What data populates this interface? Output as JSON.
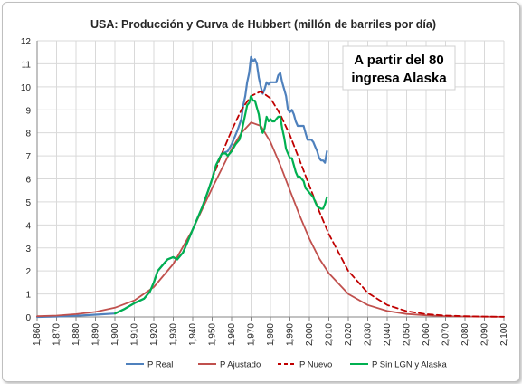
{
  "chart_data": {
    "type": "line",
    "title": "USA: Producción y Curva de Hubbert (millón de barriles por día)",
    "annotation": [
      "A partir del 80",
      "ingresa Alaska"
    ],
    "xlabel": "",
    "ylabel": "",
    "xlim": [
      1860,
      2100
    ],
    "ylim": [
      0,
      12
    ],
    "x_ticks": [
      "1,860",
      "1,870",
      "1,880",
      "1,890",
      "1,900",
      "1,910",
      "1,920",
      "1,930",
      "1,940",
      "1,950",
      "1,960",
      "1,970",
      "1,980",
      "1,990",
      "2,000",
      "2,010",
      "2,020",
      "2,030",
      "2,040",
      "2,050",
      "2,060",
      "2,070",
      "2,080",
      "2,090",
      "2,100"
    ],
    "y_ticks": [
      "0",
      "1",
      "2",
      "3",
      "4",
      "5",
      "6",
      "7",
      "8",
      "9",
      "10",
      "11",
      "12"
    ],
    "grid": true,
    "legend_position": "bottom",
    "series": [
      {
        "name": "P Real",
        "color": "#4f81bd",
        "dash": "",
        "points": [
          [
            1860,
            0.0
          ],
          [
            1870,
            0.02
          ],
          [
            1880,
            0.05
          ],
          [
            1890,
            0.1
          ],
          [
            1900,
            0.15
          ],
          [
            1905,
            0.35
          ],
          [
            1910,
            0.6
          ],
          [
            1915,
            0.8
          ],
          [
            1918,
            1.1
          ],
          [
            1920,
            1.5
          ],
          [
            1922,
            2.0
          ],
          [
            1925,
            2.3
          ],
          [
            1927,
            2.5
          ],
          [
            1930,
            2.6
          ],
          [
            1932,
            2.5
          ],
          [
            1935,
            2.8
          ],
          [
            1937,
            3.2
          ],
          [
            1940,
            3.8
          ],
          [
            1942,
            4.2
          ],
          [
            1945,
            4.8
          ],
          [
            1948,
            5.5
          ],
          [
            1950,
            6.0
          ],
          [
            1952,
            6.6
          ],
          [
            1955,
            7.1
          ],
          [
            1958,
            7.2
          ],
          [
            1960,
            7.5
          ],
          [
            1962,
            7.9
          ],
          [
            1963,
            8.1
          ],
          [
            1965,
            8.6
          ],
          [
            1966,
            9.2
          ],
          [
            1967,
            9.6
          ],
          [
            1968,
            10.2
          ],
          [
            1969,
            10.6
          ],
          [
            1970,
            11.3
          ],
          [
            1971,
            11.1
          ],
          [
            1972,
            11.2
          ],
          [
            1973,
            11.0
          ],
          [
            1974,
            10.4
          ],
          [
            1975,
            10.0
          ],
          [
            1976,
            9.7
          ],
          [
            1977,
            9.9
          ],
          [
            1978,
            10.2
          ],
          [
            1979,
            10.1
          ],
          [
            1980,
            10.2
          ],
          [
            1981,
            10.2
          ],
          [
            1982,
            10.2
          ],
          [
            1983,
            10.2
          ],
          [
            1984,
            10.5
          ],
          [
            1985,
            10.6
          ],
          [
            1986,
            10.2
          ],
          [
            1987,
            9.9
          ],
          [
            1988,
            9.6
          ],
          [
            1989,
            9.0
          ],
          [
            1990,
            8.9
          ],
          [
            1991,
            9.0
          ],
          [
            1992,
            8.8
          ],
          [
            1993,
            8.5
          ],
          [
            1994,
            8.3
          ],
          [
            1995,
            8.3
          ],
          [
            1996,
            8.3
          ],
          [
            1997,
            8.3
          ],
          [
            1998,
            8.0
          ],
          [
            1999,
            7.7
          ],
          [
            2000,
            7.7
          ],
          [
            2001,
            7.7
          ],
          [
            2002,
            7.6
          ],
          [
            2003,
            7.4
          ],
          [
            2004,
            7.2
          ],
          [
            2005,
            6.9
          ],
          [
            2006,
            6.8
          ],
          [
            2007,
            6.8
          ],
          [
            2008,
            6.7
          ],
          [
            2009,
            7.2
          ]
        ]
      },
      {
        "name": "P Ajustado",
        "color": "#c0504d",
        "dash": "",
        "points": [
          [
            1860,
            0.03
          ],
          [
            1870,
            0.06
          ],
          [
            1880,
            0.12
          ],
          [
            1890,
            0.22
          ],
          [
            1900,
            0.4
          ],
          [
            1910,
            0.72
          ],
          [
            1920,
            1.3
          ],
          [
            1930,
            2.3
          ],
          [
            1940,
            3.8
          ],
          [
            1950,
            5.6
          ],
          [
            1960,
            7.3
          ],
          [
            1965,
            8.0
          ],
          [
            1970,
            8.45
          ],
          [
            1975,
            8.3
          ],
          [
            1980,
            7.6
          ],
          [
            1985,
            6.6
          ],
          [
            1990,
            5.5
          ],
          [
            1995,
            4.4
          ],
          [
            2000,
            3.4
          ],
          [
            2005,
            2.55
          ],
          [
            2010,
            1.9
          ],
          [
            2020,
            1.0
          ],
          [
            2030,
            0.52
          ],
          [
            2040,
            0.26
          ],
          [
            2050,
            0.13
          ],
          [
            2060,
            0.07
          ],
          [
            2070,
            0.035
          ],
          [
            2080,
            0.02
          ],
          [
            2090,
            0.01
          ],
          [
            2100,
            0.005
          ]
        ]
      },
      {
        "name": "P Nuevo",
        "color": "#c00000",
        "dash": "6 4",
        "points": [
          [
            1950,
            6.0
          ],
          [
            1955,
            7.1
          ],
          [
            1960,
            8.1
          ],
          [
            1965,
            9.0
          ],
          [
            1970,
            9.6
          ],
          [
            1975,
            9.8
          ],
          [
            1980,
            9.5
          ],
          [
            1985,
            8.8
          ],
          [
            1990,
            7.9
          ],
          [
            1995,
            6.8
          ],
          [
            2000,
            5.7
          ],
          [
            2005,
            4.6
          ],
          [
            2010,
            3.6
          ],
          [
            2020,
            2.0
          ],
          [
            2030,
            1.05
          ],
          [
            2040,
            0.52
          ],
          [
            2050,
            0.25
          ],
          [
            2060,
            0.12
          ],
          [
            2070,
            0.06
          ],
          [
            2080,
            0.03
          ],
          [
            2090,
            0.015
          ],
          [
            2100,
            0.008
          ]
        ]
      },
      {
        "name": "P Sin LGN y Alaska",
        "color": "#00b050",
        "dash": "",
        "points": [
          [
            1900,
            0.15
          ],
          [
            1905,
            0.35
          ],
          [
            1910,
            0.6
          ],
          [
            1915,
            0.8
          ],
          [
            1918,
            1.1
          ],
          [
            1920,
            1.5
          ],
          [
            1922,
            2.0
          ],
          [
            1925,
            2.3
          ],
          [
            1927,
            2.5
          ],
          [
            1930,
            2.6
          ],
          [
            1932,
            2.5
          ],
          [
            1935,
            2.8
          ],
          [
            1937,
            3.2
          ],
          [
            1940,
            3.8
          ],
          [
            1942,
            4.2
          ],
          [
            1945,
            4.8
          ],
          [
            1948,
            5.5
          ],
          [
            1950,
            6.0
          ],
          [
            1952,
            6.6
          ],
          [
            1955,
            7.1
          ],
          [
            1957,
            7.1
          ],
          [
            1958,
            7.0
          ],
          [
            1960,
            7.2
          ],
          [
            1962,
            7.5
          ],
          [
            1964,
            7.7
          ],
          [
            1965,
            8.0
          ],
          [
            1966,
            8.4
          ],
          [
            1967,
            8.8
          ],
          [
            1968,
            9.2
          ],
          [
            1969,
            9.3
          ],
          [
            1970,
            9.6
          ],
          [
            1971,
            9.4
          ],
          [
            1972,
            9.4
          ],
          [
            1973,
            9.1
          ],
          [
            1974,
            8.8
          ],
          [
            1975,
            8.2
          ],
          [
            1976,
            8.0
          ],
          [
            1977,
            8.2
          ],
          [
            1978,
            8.7
          ],
          [
            1979,
            8.5
          ],
          [
            1980,
            8.6
          ],
          [
            1981,
            8.5
          ],
          [
            1982,
            8.5
          ],
          [
            1983,
            8.6
          ],
          [
            1984,
            8.7
          ],
          [
            1985,
            8.7
          ],
          [
            1986,
            8.2
          ],
          [
            1987,
            7.8
          ],
          [
            1988,
            7.3
          ],
          [
            1989,
            7.1
          ],
          [
            1990,
            6.9
          ],
          [
            1991,
            6.9
          ],
          [
            1992,
            6.6
          ],
          [
            1993,
            6.3
          ],
          [
            1994,
            6.1
          ],
          [
            1995,
            6.1
          ],
          [
            1996,
            6.0
          ],
          [
            1997,
            5.9
          ],
          [
            1998,
            5.6
          ],
          [
            1999,
            5.5
          ],
          [
            2000,
            5.4
          ],
          [
            2001,
            5.3
          ],
          [
            2002,
            5.2
          ],
          [
            2003,
            5.0
          ],
          [
            2004,
            4.8
          ],
          [
            2005,
            4.75
          ],
          [
            2006,
            4.7
          ],
          [
            2007,
            4.7
          ],
          [
            2008,
            4.9
          ],
          [
            2009,
            5.2
          ]
        ]
      }
    ]
  }
}
